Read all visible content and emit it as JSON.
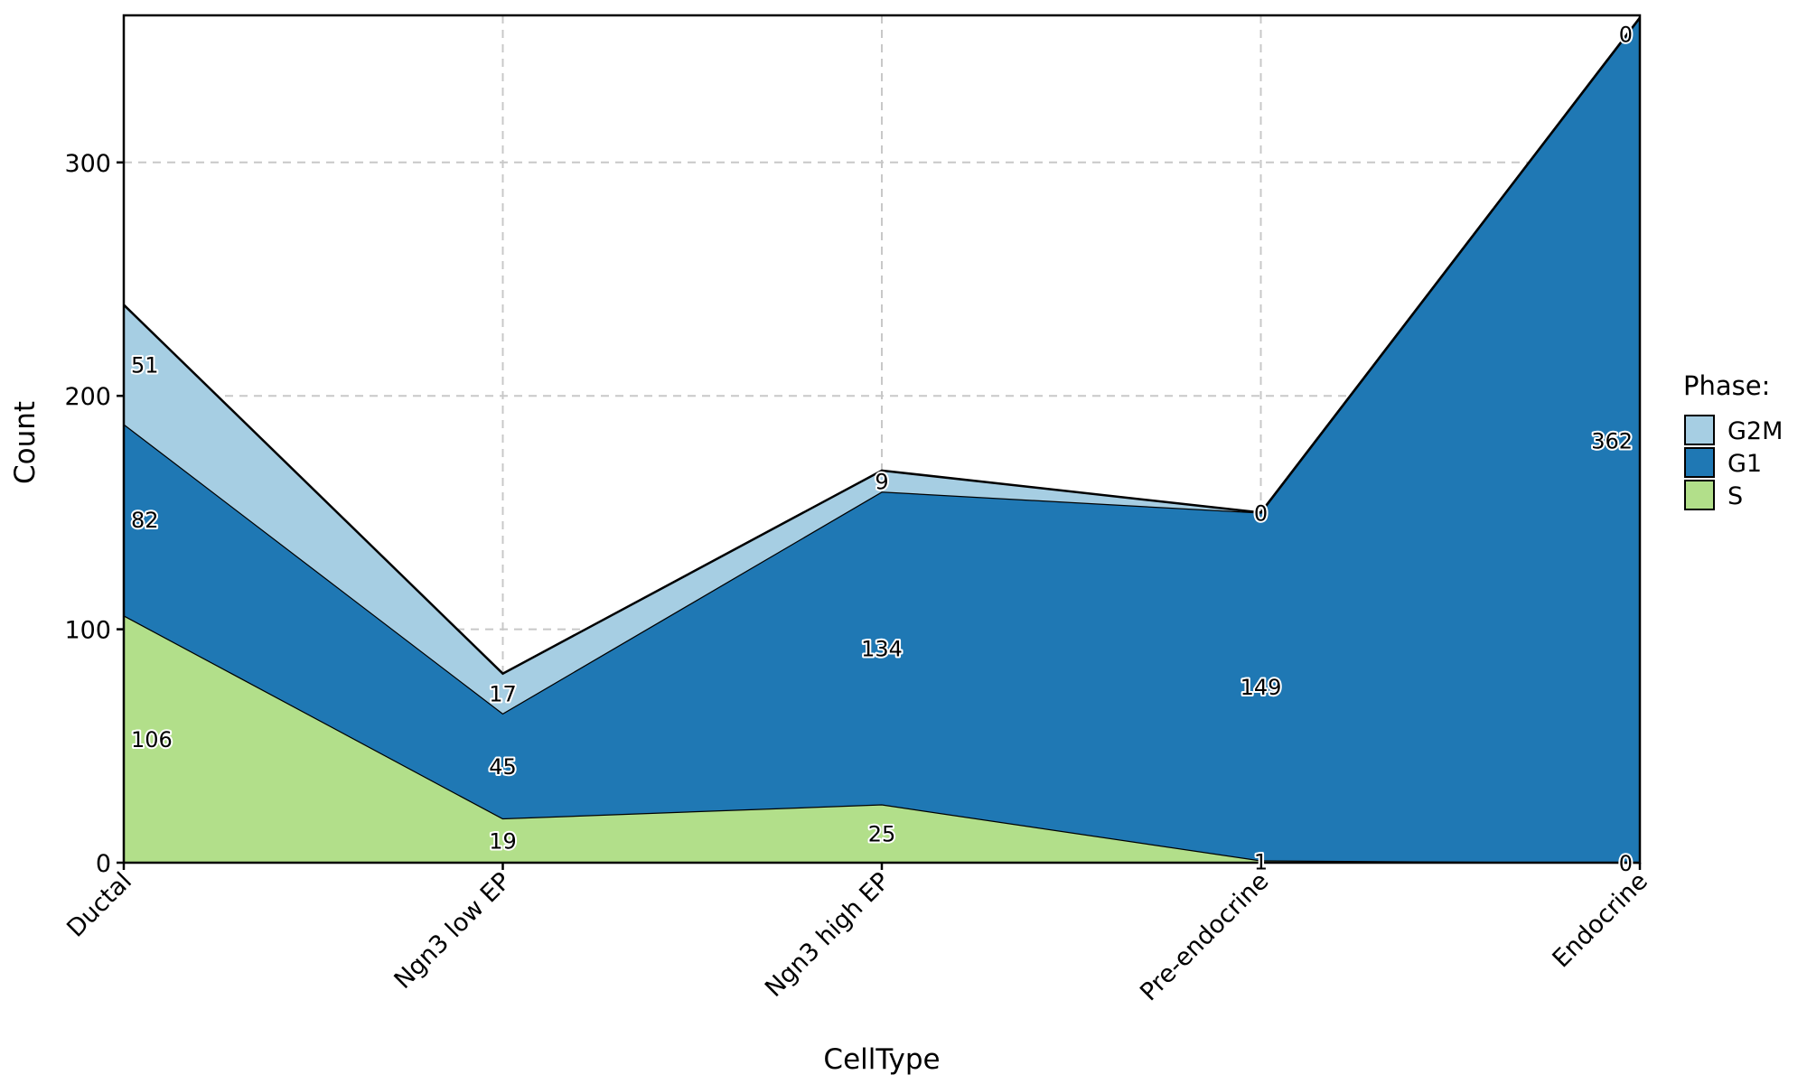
{
  "chart_data": {
    "type": "area",
    "stacked": true,
    "categories": [
      "Ductal",
      "Ngn3 low EP",
      "Ngn3 high EP",
      "Pre-endocrine",
      "Endocrine"
    ],
    "series": [
      {
        "name": "S",
        "values": [
          106,
          19,
          25,
          1,
          0
        ],
        "color": "#b2df8a"
      },
      {
        "name": "G1",
        "values": [
          82,
          45,
          134,
          149,
          362
        ],
        "color": "#1f78b4"
      },
      {
        "name": "G2M",
        "values": [
          51,
          17,
          9,
          0,
          0
        ],
        "color": "#a6cee3"
      }
    ],
    "xlabel": "CellType",
    "ylabel": "Count",
    "ylim": [
      0,
      363
    ],
    "yticks": [
      0,
      100,
      200,
      300
    ],
    "grid": true,
    "legend": {
      "title": "Phase:",
      "placement": "right",
      "order": [
        "G2M",
        "G1",
        "S"
      ]
    }
  }
}
